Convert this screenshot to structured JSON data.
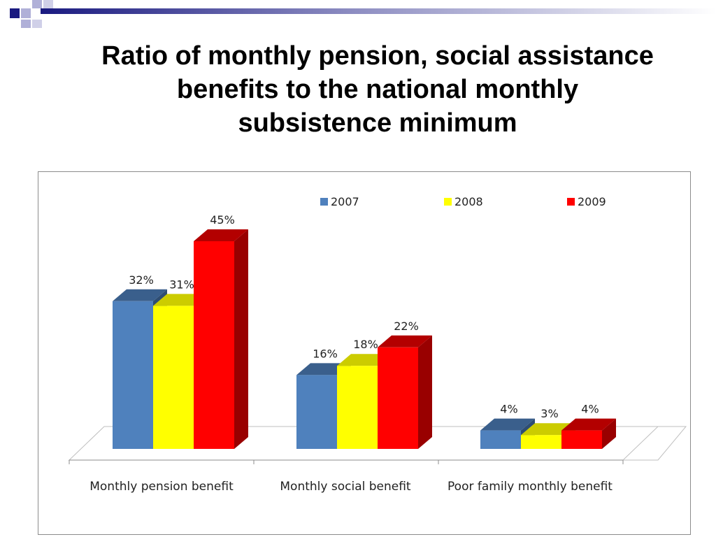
{
  "slide": {
    "title_lines": [
      "Ratio of monthly pension, social assistance",
      "benefits to the national monthly",
      "subsistence minimum"
    ]
  },
  "colors": {
    "deco_dark": "#1a1a80",
    "deco_light": "#b0b0d8",
    "series": [
      "#4f81bd",
      "#ffff00",
      "#ff0000"
    ],
    "series_dark": [
      "#3a5f8c",
      "#cccc00",
      "#b30000"
    ],
    "series_side": [
      "#2e4d73",
      "#b3b300",
      "#990000"
    ]
  },
  "chart_data": {
    "type": "bar",
    "categories": [
      "Monthly pension benefit",
      "Monthly social benefit",
      "Poor family monthly benefit"
    ],
    "series": [
      {
        "name": "2007",
        "values": [
          32,
          16,
          4
        ],
        "labels": [
          "32%",
          "16%",
          "4%"
        ]
      },
      {
        "name": "2008",
        "values": [
          31,
          18,
          3
        ],
        "labels": [
          "31%",
          "18%",
          "3%"
        ]
      },
      {
        "name": "2009",
        "values": [
          45,
          22,
          4
        ],
        "labels": [
          "45%",
          "22%",
          "4%"
        ]
      }
    ],
    "ylim": [
      0,
      50
    ],
    "grid": false,
    "legend_position": "top"
  }
}
